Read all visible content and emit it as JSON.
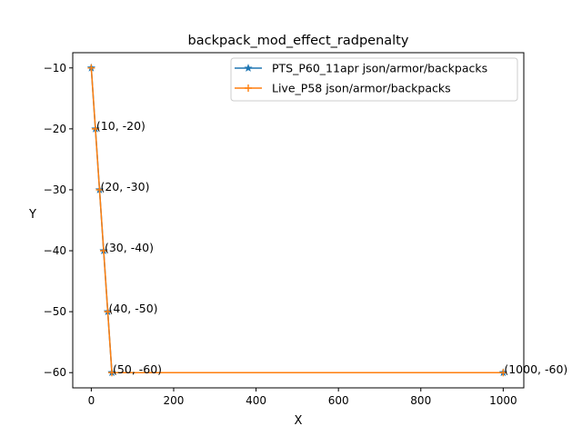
{
  "chart_data": {
    "type": "line",
    "title": "backpack_mod_effect_radpenalty",
    "xlabel": "X",
    "ylabel": "Y",
    "xlim": [
      -45,
      1050
    ],
    "ylim": [
      -62.5,
      -7.5
    ],
    "xticks": [
      0,
      200,
      400,
      600,
      800,
      1000
    ],
    "yticks": [
      -10,
      -20,
      -30,
      -40,
      -50,
      -60
    ],
    "xtick_labels": [
      "0",
      "200",
      "400",
      "600",
      "800",
      "1000"
    ],
    "ytick_labels": [
      "−10",
      "−20",
      "−30",
      "−40",
      "−50",
      "−60"
    ],
    "grid": false,
    "legend_position": "top-right",
    "series": [
      {
        "name": "PTS_P60_11apr json/armor/backpacks",
        "color": "#1f77b4",
        "marker": "star",
        "x": [
          0,
          10,
          20,
          30,
          40,
          50,
          1000
        ],
        "y": [
          -10,
          -20,
          -30,
          -40,
          -50,
          -60,
          -60
        ]
      },
      {
        "name": "Live_P58 json/armor/backpacks",
        "color": "#ff7f0e",
        "marker": "plus",
        "x": [
          0,
          10,
          20,
          30,
          40,
          50,
          1000
        ],
        "y": [
          -10,
          -20,
          -30,
          -40,
          -50,
          -60,
          -60
        ]
      }
    ],
    "annotations": [
      {
        "x": 10,
        "y": -20,
        "text": "(10, -20)"
      },
      {
        "x": 20,
        "y": -30,
        "text": "(20, -30)"
      },
      {
        "x": 30,
        "y": -40,
        "text": "(30, -40)"
      },
      {
        "x": 40,
        "y": -50,
        "text": "(40, -50)"
      },
      {
        "x": 50,
        "y": -60,
        "text": "(50, -60)"
      },
      {
        "x": 1000,
        "y": -60,
        "text": "(1000, -60)"
      }
    ]
  }
}
